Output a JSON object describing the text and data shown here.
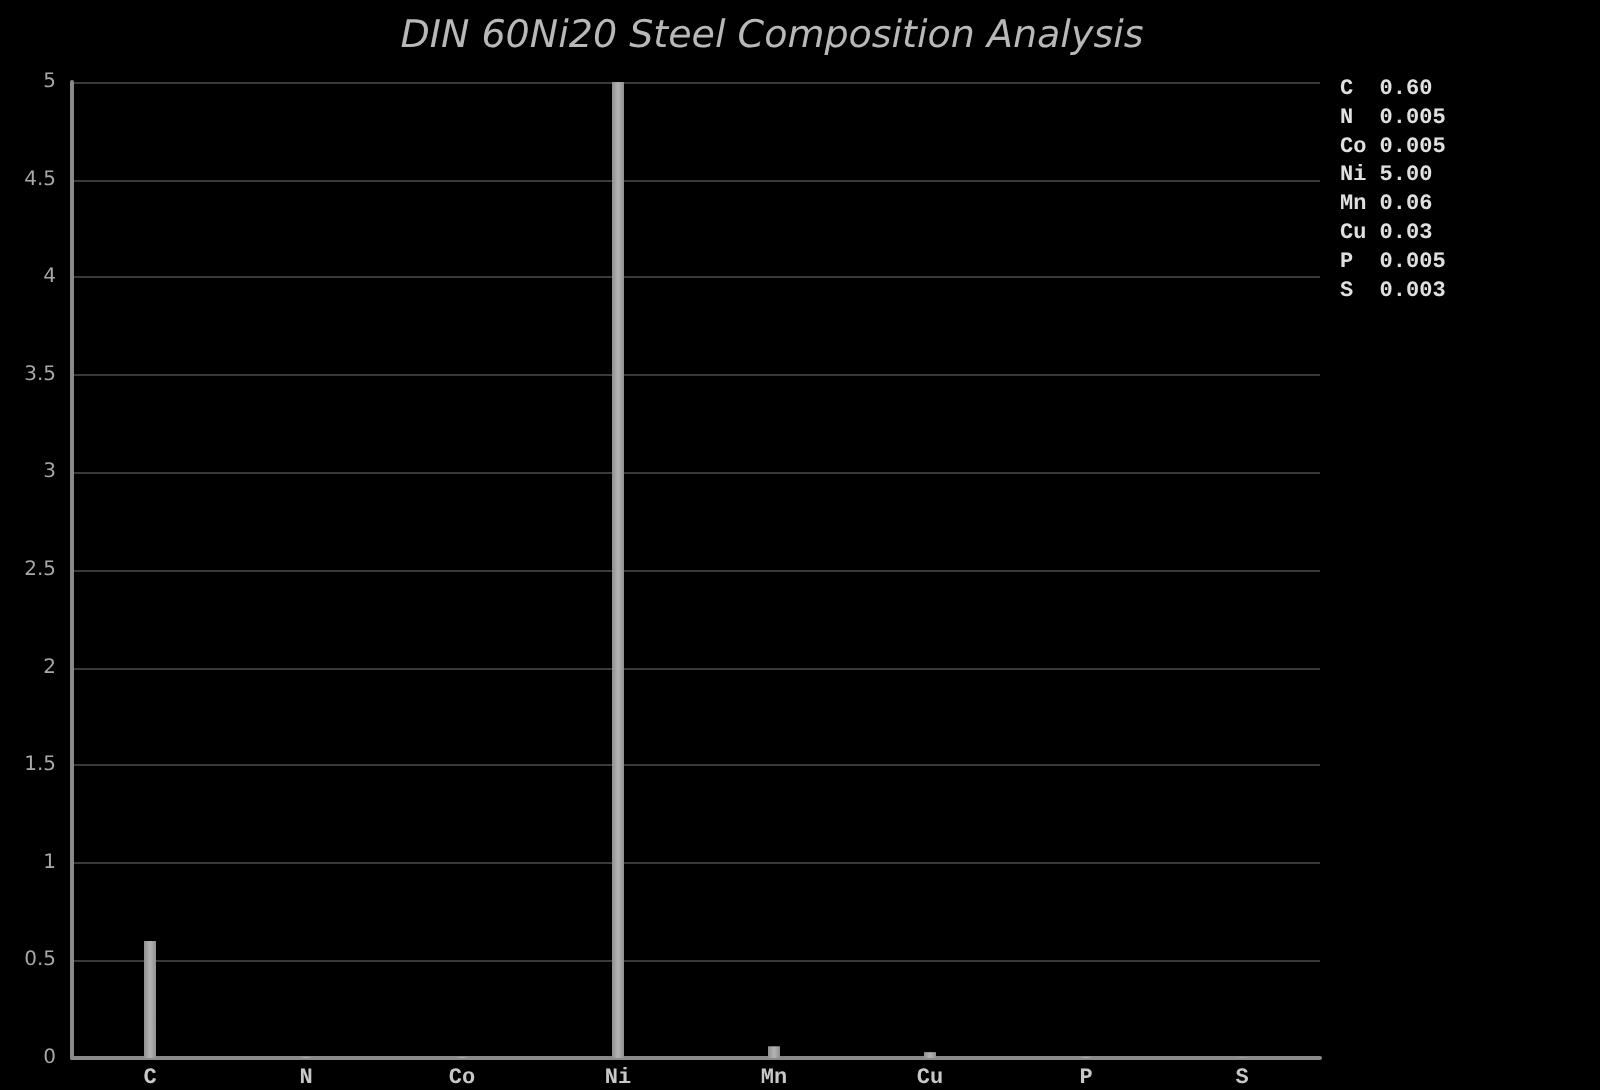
{
  "chart_data": {
    "type": "bar",
    "title": "DIN 60Ni20 Steel Composition Analysis",
    "categories": [
      "C",
      "N",
      "Co",
      "Ni",
      "Mn",
      "Cu",
      "P",
      "S"
    ],
    "values": [
      0.6,
      0.005,
      0.005,
      5.0,
      0.06,
      0.03,
      0.005,
      0.003
    ],
    "annotations": [
      "C  0.60",
      "N  0.005",
      "Co 0.005",
      "Ni 5.00",
      "Mn 0.06",
      "Cu 0.03",
      "P  0.005",
      "S  0.003"
    ],
    "color": "#8f8f8f",
    "ylim": [
      0,
      5
    ],
    "yticks": [
      0,
      0.5,
      1,
      1.5,
      2,
      2.5,
      3,
      3.5,
      4,
      4.5,
      5
    ],
    "grid": "y"
  }
}
